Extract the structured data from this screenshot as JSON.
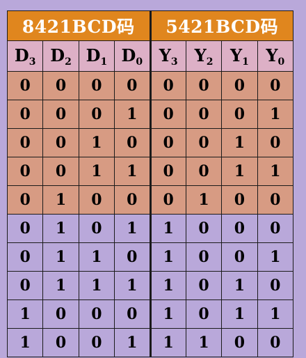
{
  "groups": [
    {
      "label": "8421BCD码"
    },
    {
      "label": "5421BCD码"
    }
  ],
  "columns": [
    {
      "letter": "D",
      "sub": "3"
    },
    {
      "letter": "D",
      "sub": "2"
    },
    {
      "letter": "D",
      "sub": "1"
    },
    {
      "letter": "D",
      "sub": "0"
    },
    {
      "letter": "Y",
      "sub": "3"
    },
    {
      "letter": "Y",
      "sub": "2"
    },
    {
      "letter": "Y",
      "sub": "1"
    },
    {
      "letter": "Y",
      "sub": "0"
    }
  ],
  "rows": [
    [
      "0",
      "0",
      "0",
      "0",
      "0",
      "0",
      "0",
      "0"
    ],
    [
      "0",
      "0",
      "0",
      "1",
      "0",
      "0",
      "0",
      "1"
    ],
    [
      "0",
      "0",
      "1",
      "0",
      "0",
      "0",
      "1",
      "0"
    ],
    [
      "0",
      "0",
      "1",
      "1",
      "0",
      "0",
      "1",
      "1"
    ],
    [
      "0",
      "1",
      "0",
      "0",
      "0",
      "1",
      "0",
      "0"
    ],
    [
      "0",
      "1",
      "0",
      "1",
      "1",
      "0",
      "0",
      "0"
    ],
    [
      "0",
      "1",
      "1",
      "0",
      "1",
      "0",
      "0",
      "1"
    ],
    [
      "0",
      "1",
      "1",
      "1",
      "1",
      "0",
      "1",
      "0"
    ],
    [
      "1",
      "0",
      "0",
      "0",
      "1",
      "0",
      "1",
      "1"
    ],
    [
      "1",
      "0",
      "0",
      "1",
      "1",
      "1",
      "0",
      "0"
    ]
  ],
  "colors": {
    "header_orange": "#e0861e",
    "subheader_pink": "#ddb0c6",
    "upper_rows": "#d79b83",
    "lower_rows": "#b9a8da"
  }
}
